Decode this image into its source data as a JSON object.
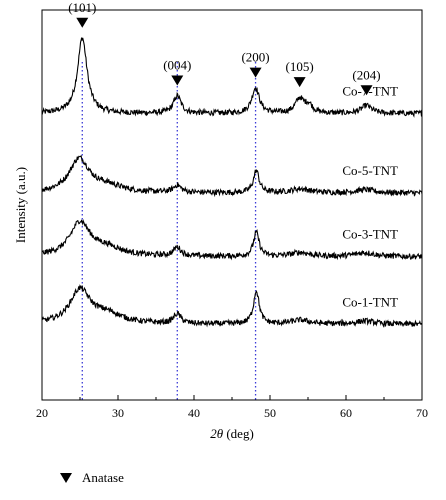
{
  "chart_data": {
    "type": "line",
    "xlabel_symbol": "2θ",
    "xlabel_unit": "(deg)",
    "ylabel": "Intensity (a.u.)",
    "xlim": [
      20,
      70
    ],
    "x_ticks": [
      20,
      30,
      40,
      50,
      60,
      70
    ],
    "y_ticks": [],
    "grid": false,
    "legend": {
      "position": "bottom-left",
      "marker": "filled-down-triangle",
      "label": "Anatase"
    },
    "reference_lines": [
      {
        "x": 25.3,
        "style": "dotted",
        "color": "#3a3ad6"
      },
      {
        "x": 37.8,
        "style": "dotted",
        "color": "#3a3ad6"
      },
      {
        "x": 48.1,
        "style": "dotted",
        "color": "#3a3ad6"
      }
    ],
    "peak_markers": [
      {
        "x": 25.3,
        "label": "(101)"
      },
      {
        "x": 37.8,
        "label": "(004)"
      },
      {
        "x": 48.1,
        "label": "(200)"
      },
      {
        "x": 53.9,
        "label": "(105)"
      },
      {
        "x": 62.7,
        "label": "(204)"
      }
    ],
    "series": [
      {
        "name": "Co-7-TNT",
        "baseline": 3.0,
        "peaks": [
          {
            "x": 25.3,
            "height": 0.95,
            "width": 0.75
          },
          {
            "x": 37.8,
            "height": 0.22,
            "width": 0.6
          },
          {
            "x": 48.1,
            "height": 0.32,
            "width": 0.6
          },
          {
            "x": 53.9,
            "height": 0.18,
            "width": 0.7
          },
          {
            "x": 55.1,
            "height": 0.1,
            "width": 0.6
          },
          {
            "x": 62.7,
            "height": 0.1,
            "width": 0.8
          }
        ],
        "noise": 0.035
      },
      {
        "name": "Co-5-TNT",
        "baseline": 2.0,
        "peaks": [
          {
            "x": 24.9,
            "height": 0.42,
            "width": 1.6
          },
          {
            "x": 28.5,
            "height": 0.08,
            "width": 2.5
          },
          {
            "x": 37.8,
            "height": 0.09,
            "width": 0.6
          },
          {
            "x": 48.2,
            "height": 0.28,
            "width": 0.45
          },
          {
            "x": 54.0,
            "height": 0.05,
            "width": 1.5
          },
          {
            "x": 62.5,
            "height": 0.04,
            "width": 1.5
          }
        ],
        "noise": 0.035
      },
      {
        "name": "Co-3-TNT",
        "baseline": 1.2,
        "peaks": [
          {
            "x": 25.0,
            "height": 0.42,
            "width": 1.6
          },
          {
            "x": 28.5,
            "height": 0.1,
            "width": 2.5
          },
          {
            "x": 37.8,
            "height": 0.11,
            "width": 0.6
          },
          {
            "x": 48.2,
            "height": 0.3,
            "width": 0.45
          },
          {
            "x": 54.0,
            "height": 0.05,
            "width": 1.5
          },
          {
            "x": 62.5,
            "height": 0.05,
            "width": 1.5
          }
        ],
        "noise": 0.035
      },
      {
        "name": "Co-1-TNT",
        "baseline": 0.35,
        "peaks": [
          {
            "x": 25.0,
            "height": 0.42,
            "width": 1.6
          },
          {
            "x": 28.5,
            "height": 0.12,
            "width": 2.5
          },
          {
            "x": 37.8,
            "height": 0.12,
            "width": 0.6
          },
          {
            "x": 48.2,
            "height": 0.42,
            "width": 0.45
          },
          {
            "x": 54.0,
            "height": 0.05,
            "width": 1.5
          },
          {
            "x": 62.5,
            "height": 0.04,
            "width": 1.5
          }
        ],
        "noise": 0.035
      }
    ]
  }
}
